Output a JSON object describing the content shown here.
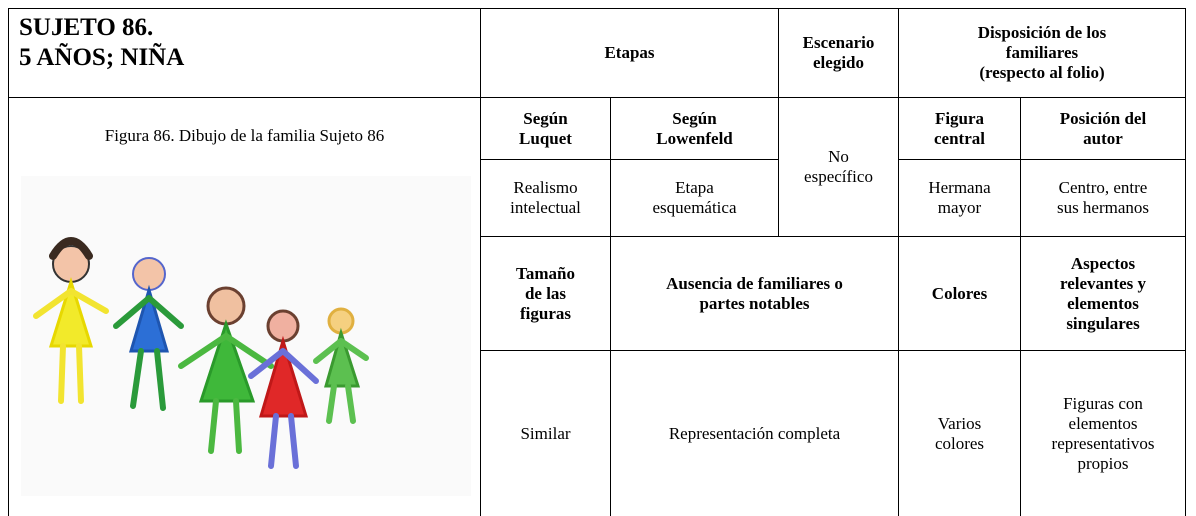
{
  "header": {
    "title": [
      "SUJETO 86.",
      "5 AÑOS; NIÑA"
    ],
    "etapas": "Etapas",
    "escenario": [
      "Escenario",
      "elegido"
    ],
    "disposicion": [
      "Disposición de los",
      "familiares",
      "(respecto al folio)"
    ]
  },
  "figure": {
    "caption": "Figura 86. Dibujo de la familia Sujeto 86"
  },
  "table": {
    "subheaders": [
      [
        "Según",
        "Luquet"
      ],
      [
        "Según",
        "Lowenfeld"
      ],
      [
        "Figura",
        "central"
      ],
      [
        "Posición del",
        "autor"
      ]
    ],
    "values": [
      [
        "Realismo",
        "intelectual"
      ],
      [
        "Etapa",
        "esquemática"
      ],
      [
        "No",
        "específico"
      ],
      [
        "Hermana",
        "mayor"
      ],
      [
        "Centro, entre",
        "sus hermanos"
      ]
    ],
    "headers2": [
      [
        "Tamaño",
        "de las",
        "figuras"
      ],
      [
        "Ausencia de familiares o",
        "partes notables"
      ],
      [
        "Colores"
      ],
      [
        "Aspectos",
        "relevantes y",
        "elementos",
        "singulares"
      ]
    ],
    "values2": [
      [
        "Similar"
      ],
      [
        "Representación completa"
      ],
      [
        "Varios",
        "colores"
      ],
      [
        "Figuras con",
        "elementos",
        "representativos",
        "propios"
      ]
    ]
  }
}
